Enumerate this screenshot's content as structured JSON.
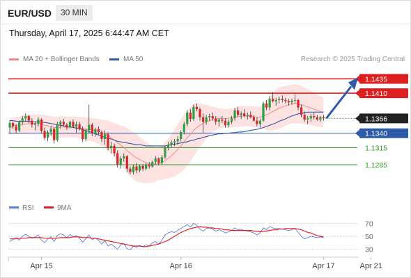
{
  "header": {
    "pair": "EUR/USD",
    "timeframe": "30 MIN"
  },
  "timestamp": "Thursday, April 17, 2025 6:44:47 AM CET",
  "legend": {
    "ma20_label": "MA 20 + Bollinger Bands",
    "ma20_color": "#f08a8a",
    "ma50_label": "MA 50",
    "ma50_color": "#2e5aa8"
  },
  "credit": "Research © 2025 Trading Central",
  "chart_data": [
    {
      "type": "candlestick",
      "title": "EUR/USD",
      "ylim": [
        1.1245,
        1.1455
      ],
      "x_labels": [
        {
          "label": "Apr 15",
          "index": 10
        },
        {
          "label": "Apr 16",
          "index": 54
        },
        {
          "label": "Apr 17",
          "index": 99
        },
        {
          "label": "Apr 21",
          "index": 114
        }
      ],
      "current_price": "1.1366",
      "levels": [
        {
          "value": 1.1435,
          "label": "1.1435",
          "kind": "resistance",
          "color": "#dd1f1f"
        },
        {
          "value": 1.141,
          "label": "1.1410",
          "kind": "resistance",
          "color": "#dd1f1f"
        },
        {
          "value": 1.134,
          "label": "1.1340",
          "kind": "pivot",
          "color": "#2e5aa8"
        },
        {
          "value": 1.1315,
          "label": "1.1315",
          "kind": "support",
          "color": "#2a9a2a"
        },
        {
          "value": 1.1285,
          "label": "1.1285",
          "kind": "support",
          "color": "#2a9a2a"
        }
      ],
      "candles": [
        [
          1.135,
          1.1362,
          1.134,
          1.1358
        ],
        [
          1.1358,
          1.136,
          1.1348,
          1.1352
        ],
        [
          1.1352,
          1.1356,
          1.134,
          1.1345
        ],
        [
          1.1345,
          1.1362,
          1.1342,
          1.1359
        ],
        [
          1.1359,
          1.137,
          1.1355,
          1.1366
        ],
        [
          1.1366,
          1.1375,
          1.136,
          1.137
        ],
        [
          1.137,
          1.1372,
          1.1358,
          1.1362
        ],
        [
          1.1362,
          1.1366,
          1.135,
          1.1355
        ],
        [
          1.1355,
          1.136,
          1.1345,
          1.1357
        ],
        [
          1.1357,
          1.1368,
          1.1352,
          1.1364
        ],
        [
          1.1364,
          1.1366,
          1.134,
          1.1344
        ],
        [
          1.1344,
          1.135,
          1.1328,
          1.1332
        ],
        [
          1.1332,
          1.1345,
          1.1326,
          1.1342
        ],
        [
          1.1342,
          1.1352,
          1.1336,
          1.1348
        ],
        [
          1.1348,
          1.135,
          1.1322,
          1.1328
        ],
        [
          1.1328,
          1.136,
          1.1325,
          1.1356
        ],
        [
          1.1356,
          1.1363,
          1.1348,
          1.136
        ],
        [
          1.136,
          1.1365,
          1.1352,
          1.1355
        ],
        [
          1.1355,
          1.1358,
          1.1346,
          1.135
        ],
        [
          1.135,
          1.1362,
          1.1348,
          1.136
        ],
        [
          1.136,
          1.1364,
          1.135,
          1.1352
        ],
        [
          1.1352,
          1.136,
          1.134,
          1.1356
        ],
        [
          1.1356,
          1.136,
          1.1345,
          1.1348
        ],
        [
          1.1348,
          1.1352,
          1.1325,
          1.133
        ],
        [
          1.133,
          1.1348,
          1.1326,
          1.1345
        ],
        [
          1.1345,
          1.139,
          1.134,
          1.1355
        ],
        [
          1.1355,
          1.1358,
          1.1335,
          1.134
        ],
        [
          1.134,
          1.135,
          1.1334,
          1.1347
        ],
        [
          1.1347,
          1.1352,
          1.1338,
          1.1342
        ],
        [
          1.1342,
          1.1345,
          1.1325,
          1.133
        ],
        [
          1.133,
          1.1345,
          1.132,
          1.1338
        ],
        [
          1.1338,
          1.1342,
          1.131,
          1.1314
        ],
        [
          1.1314,
          1.1325,
          1.1305,
          1.1318
        ],
        [
          1.1318,
          1.1322,
          1.13,
          1.1305
        ],
        [
          1.1305,
          1.131,
          1.128,
          1.1285
        ],
        [
          1.1285,
          1.13,
          1.1278,
          1.1296
        ],
        [
          1.1296,
          1.1305,
          1.129,
          1.13
        ],
        [
          1.13,
          1.1302,
          1.1272,
          1.1278
        ],
        [
          1.1278,
          1.1282,
          1.1268,
          1.1272
        ],
        [
          1.1272,
          1.1285,
          1.1268,
          1.1282
        ],
        [
          1.1282,
          1.1288,
          1.127,
          1.1275
        ],
        [
          1.1275,
          1.1285,
          1.1272,
          1.1283
        ],
        [
          1.1283,
          1.1286,
          1.1274,
          1.1278
        ],
        [
          1.1278,
          1.1288,
          1.1275,
          1.1285
        ],
        [
          1.1285,
          1.129,
          1.1278,
          1.1282
        ],
        [
          1.1282,
          1.1292,
          1.128,
          1.129
        ],
        [
          1.129,
          1.13,
          1.1286,
          1.1296
        ],
        [
          1.1296,
          1.1298,
          1.1284,
          1.1288
        ],
        [
          1.1288,
          1.1302,
          1.1285,
          1.1298
        ],
        [
          1.1298,
          1.1318,
          1.1295,
          1.1314
        ],
        [
          1.1314,
          1.1325,
          1.131,
          1.132
        ],
        [
          1.132,
          1.1328,
          1.1315,
          1.1324
        ],
        [
          1.1324,
          1.133,
          1.1318,
          1.1326
        ],
        [
          1.1326,
          1.1335,
          1.132,
          1.133
        ],
        [
          1.133,
          1.1345,
          1.1326,
          1.1342
        ],
        [
          1.1342,
          1.136,
          1.1338,
          1.1356
        ],
        [
          1.1356,
          1.138,
          1.1352,
          1.1376
        ],
        [
          1.1376,
          1.1382,
          1.136,
          1.1365
        ],
        [
          1.1365,
          1.139,
          1.1362,
          1.1386
        ],
        [
          1.1386,
          1.1392,
          1.1378,
          1.1382
        ],
        [
          1.1382,
          1.1385,
          1.1362,
          1.1368
        ],
        [
          1.1368,
          1.1375,
          1.134,
          1.136
        ],
        [
          1.136,
          1.1372,
          1.1355,
          1.1368
        ],
        [
          1.1368,
          1.1374,
          1.1362,
          1.137
        ],
        [
          1.137,
          1.1376,
          1.1362,
          1.1366
        ],
        [
          1.1366,
          1.137,
          1.1355,
          1.136
        ],
        [
          1.136,
          1.1366,
          1.1352,
          1.1364
        ],
        [
          1.1364,
          1.137,
          1.1358,
          1.1362
        ],
        [
          1.1362,
          1.1366,
          1.135,
          1.1354
        ],
        [
          1.1354,
          1.1364,
          1.135,
          1.136
        ],
        [
          1.136,
          1.137,
          1.1356,
          1.1366
        ],
        [
          1.1366,
          1.1384,
          1.1362,
          1.138
        ],
        [
          1.138,
          1.1386,
          1.1368,
          1.1372
        ],
        [
          1.1372,
          1.1378,
          1.1365,
          1.1375
        ],
        [
          1.1375,
          1.1382,
          1.1368,
          1.137
        ],
        [
          1.137,
          1.1376,
          1.1364,
          1.1372
        ],
        [
          1.1372,
          1.1378,
          1.1366,
          1.1368
        ],
        [
          1.1368,
          1.1372,
          1.136,
          1.1362
        ],
        [
          1.1362,
          1.1368,
          1.1352,
          1.1356
        ],
        [
          1.1356,
          1.1365,
          1.135,
          1.1362
        ],
        [
          1.1362,
          1.1395,
          1.136,
          1.1392
        ],
        [
          1.1392,
          1.1398,
          1.138,
          1.1385
        ],
        [
          1.1385,
          1.1405,
          1.138,
          1.14
        ],
        [
          1.14,
          1.1412,
          1.1394,
          1.1396
        ],
        [
          1.1396,
          1.1402,
          1.1388,
          1.1398
        ],
        [
          1.1398,
          1.1404,
          1.1392,
          1.14
        ],
        [
          1.14,
          1.1406,
          1.1394,
          1.1398
        ],
        [
          1.1398,
          1.1402,
          1.1392,
          1.1396
        ],
        [
          1.1396,
          1.14,
          1.1388,
          1.1394
        ],
        [
          1.1394,
          1.14,
          1.139,
          1.1397
        ],
        [
          1.1397,
          1.1408,
          1.1392,
          1.1398
        ],
        [
          1.1398,
          1.14,
          1.138,
          1.1385
        ],
        [
          1.1385,
          1.139,
          1.1368,
          1.1372
        ],
        [
          1.1372,
          1.1378,
          1.136,
          1.1364
        ],
        [
          1.1364,
          1.137,
          1.1356,
          1.1366
        ],
        [
          1.1366,
          1.1374,
          1.136,
          1.137
        ],
        [
          1.137,
          1.1376,
          1.1364,
          1.1368
        ],
        [
          1.1368,
          1.1372,
          1.1362,
          1.1364
        ],
        [
          1.1364,
          1.137,
          1.136,
          1.1368
        ],
        [
          1.1368,
          1.1372,
          1.1362,
          1.1366
        ]
      ],
      "ma20": [
        1.1352,
        1.1353,
        1.1354,
        1.1354,
        1.1355,
        1.1356,
        1.1357,
        1.1357,
        1.1357,
        1.1357,
        1.1356,
        1.1354,
        1.1353,
        1.1352,
        1.135,
        1.135,
        1.1351,
        1.1351,
        1.1351,
        1.1351,
        1.1351,
        1.1351,
        1.135,
        1.1348,
        1.1347,
        1.1347,
        1.1346,
        1.1345,
        1.1343,
        1.1341,
        1.1339,
        1.1336,
        1.1332,
        1.1328,
        1.1323,
        1.1319,
        1.1315,
        1.131,
        1.1305,
        1.1301,
        1.1297,
        1.1294,
        1.1291,
        1.1289,
        1.1287,
        1.1286,
        1.1286,
        1.1287,
        1.1289,
        1.1292,
        1.1296,
        1.1301,
        1.1306,
        1.1312,
        1.1318,
        1.1325,
        1.1332,
        1.1338,
        1.1345,
        1.135,
        1.1354,
        1.1357,
        1.136,
        1.1362,
        1.1364,
        1.1365,
        1.1366,
        1.1366,
        1.1366,
        1.1366,
        1.1367,
        1.1368,
        1.1369,
        1.137,
        1.137,
        1.137,
        1.137,
        1.1369,
        1.1368,
        1.1368,
        1.137,
        1.1372,
        1.1375,
        1.1378,
        1.1381,
        1.1384,
        1.1386,
        1.1388,
        1.139,
        1.1391,
        1.1392,
        1.1391,
        1.139,
        1.1388,
        1.1386,
        1.1384,
        1.1382,
        1.138,
        1.1378,
        1.1376
      ],
      "bb_width": [
        0.0014,
        0.0014,
        0.0015,
        0.0015,
        0.0016,
        0.0016,
        0.0016,
        0.0016,
        0.0016,
        0.0016,
        0.0017,
        0.0018,
        0.0018,
        0.0018,
        0.0019,
        0.0019,
        0.0019,
        0.0019,
        0.0018,
        0.0018,
        0.0018,
        0.0018,
        0.0019,
        0.002,
        0.002,
        0.002,
        0.002,
        0.0021,
        0.0022,
        0.0023,
        0.0024,
        0.0026,
        0.0028,
        0.003,
        0.0033,
        0.0035,
        0.0037,
        0.0039,
        0.004,
        0.0041,
        0.0041,
        0.004,
        0.0038,
        0.0036,
        0.0034,
        0.0032,
        0.003,
        0.0029,
        0.003,
        0.0032,
        0.0035,
        0.0038,
        0.0041,
        0.0044,
        0.0046,
        0.0048,
        0.0049,
        0.0048,
        0.0046,
        0.0042,
        0.0038,
        0.0034,
        0.003,
        0.0026,
        0.0022,
        0.002,
        0.0018,
        0.0017,
        0.0016,
        0.0016,
        0.0016,
        0.0017,
        0.0018,
        0.0018,
        0.0018,
        0.0018,
        0.0018,
        0.0018,
        0.0018,
        0.0019,
        0.0022,
        0.0026,
        0.003,
        0.0033,
        0.0035,
        0.0036,
        0.0036,
        0.0035,
        0.0034,
        0.0034,
        0.0034,
        0.0034,
        0.0033,
        0.0032,
        0.0031,
        0.003,
        0.0029,
        0.0028,
        0.0027,
        0.0026
      ],
      "ma50": [
        1.1362,
        1.1362,
        1.1361,
        1.1361,
        1.1361,
        1.1361,
        1.1361,
        1.136,
        1.136,
        1.136,
        1.1359,
        1.1359,
        1.1358,
        1.1357,
        1.1356,
        1.1355,
        1.1354,
        1.1353,
        1.1352,
        1.1351,
        1.135,
        1.1349,
        1.1348,
        1.1346,
        1.1345,
        1.1343,
        1.1341,
        1.1339,
        1.1337,
        1.1335,
        1.1333,
        1.1331,
        1.133,
        1.1328,
        1.1326,
        1.1325,
        1.1324,
        1.1323,
        1.1322,
        1.1321,
        1.132,
        1.132,
        1.1319,
        1.1318,
        1.1318,
        1.1318,
        1.1318,
        1.1318,
        1.1318,
        1.1318,
        1.1319,
        1.132,
        1.1321,
        1.1322,
        1.1323,
        1.1324,
        1.1325,
        1.1327,
        1.1328,
        1.133,
        1.1331,
        1.1333,
        1.1334,
        1.1336,
        1.1337,
        1.1338,
        1.1339,
        1.1339,
        1.134,
        1.134,
        1.1341,
        1.1341,
        1.1342,
        1.1342,
        1.1343,
        1.1344,
        1.1345,
        1.1346,
        1.1347,
        1.1348,
        1.135,
        1.1352,
        1.1354,
        1.1356,
        1.1358,
        1.1361,
        1.1363,
        1.1365,
        1.1368,
        1.137,
        1.1372,
        1.1374,
        1.1375,
        1.1376,
        1.1377,
        1.1377,
        1.1377,
        1.1377,
        1.1377,
        1.1377
      ],
      "projection": {
        "from": 1.1366,
        "to": 1.1435
      }
    },
    {
      "type": "line",
      "title": "RSI",
      "ylim": [
        20,
        80
      ],
      "yticks": [
        70,
        50,
        30
      ],
      "series": [
        {
          "name": "RSI",
          "color": "#5b7fd6",
          "values": [
            42,
            45,
            48,
            44,
            50,
            53,
            50,
            47,
            49,
            52,
            44,
            40,
            46,
            49,
            42,
            51,
            54,
            52,
            48,
            53,
            49,
            51,
            47,
            41,
            46,
            52,
            45,
            47,
            44,
            38,
            43,
            35,
            38,
            34,
            30,
            37,
            39,
            31,
            29,
            35,
            33,
            36,
            34,
            37,
            35,
            40,
            42,
            38,
            44,
            52,
            55,
            57,
            56,
            59,
            62,
            65,
            68,
            64,
            70,
            67,
            61,
            58,
            62,
            63,
            61,
            58,
            60,
            58,
            55,
            57,
            59,
            63,
            60,
            61,
            59,
            58,
            57,
            55,
            52,
            55,
            63,
            60,
            65,
            63,
            62,
            62,
            61,
            60,
            59,
            60,
            62,
            56,
            50,
            46,
            48,
            50,
            49,
            48,
            49,
            48
          ]
        },
        {
          "name": "9MA",
          "color": "#e02020",
          "values": [
            46,
            46,
            46,
            47,
            47,
            47,
            48,
            48,
            48,
            48,
            48,
            47,
            47,
            47,
            47,
            47,
            48,
            48,
            48,
            48,
            49,
            49,
            49,
            48,
            48,
            48,
            47,
            47,
            46,
            45,
            44,
            43,
            42,
            41,
            40,
            39,
            38,
            37,
            36,
            35,
            35,
            35,
            34,
            34,
            35,
            36,
            37,
            38,
            40,
            42,
            44,
            47,
            50,
            53,
            56,
            58,
            60,
            62,
            63,
            64,
            65,
            64,
            64,
            63,
            63,
            62,
            62,
            61,
            60,
            60,
            59,
            59,
            59,
            59,
            59,
            59,
            59,
            58,
            58,
            57,
            58,
            58,
            59,
            60,
            60,
            61,
            61,
            62,
            62,
            62,
            62,
            61,
            60,
            58,
            56,
            55,
            53,
            51,
            50,
            49
          ]
        }
      ]
    }
  ]
}
